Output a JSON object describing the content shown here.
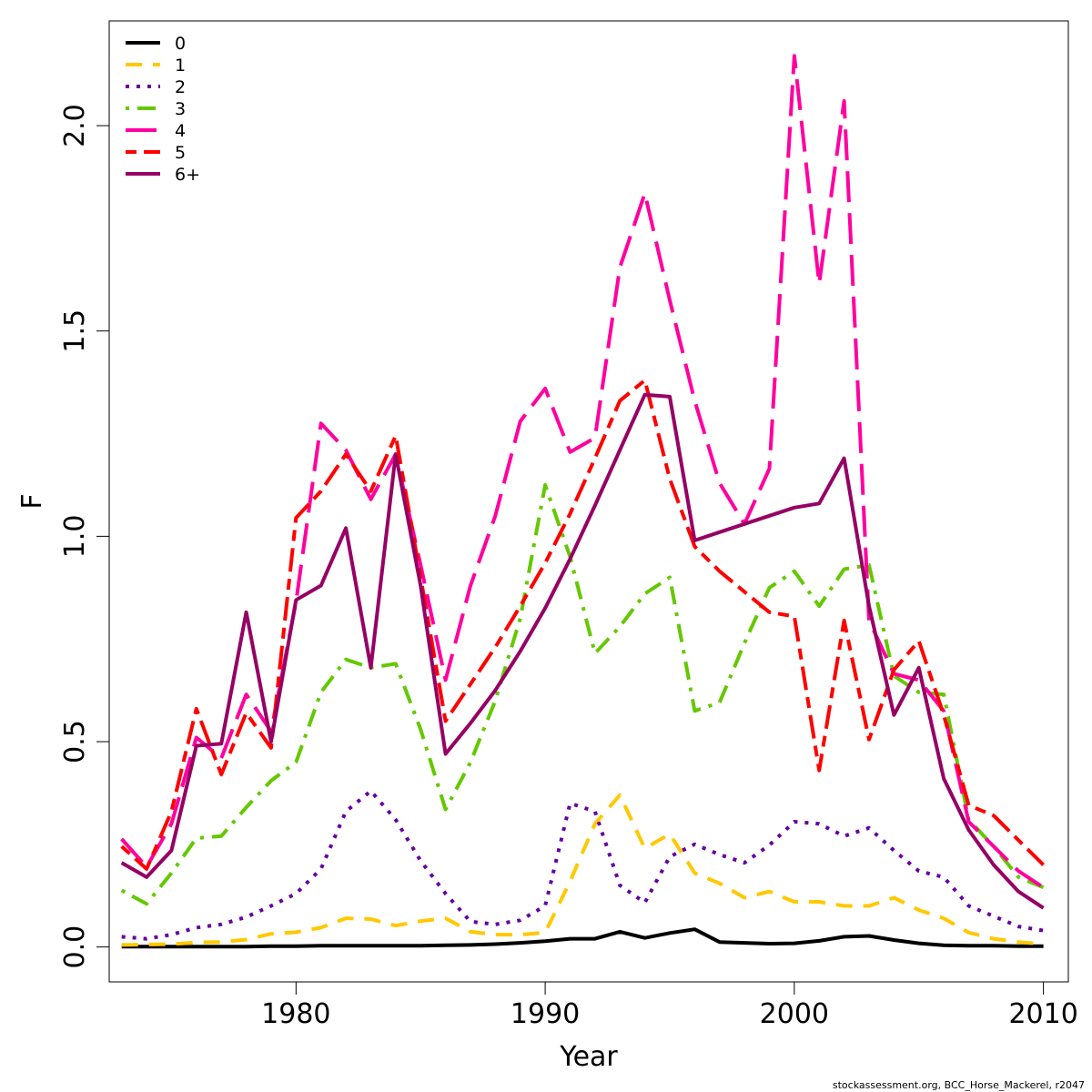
{
  "chart_data": {
    "type": "line",
    "title": "",
    "xlabel": "Year",
    "ylabel": "F",
    "xlim": [
      1972.5,
      2011
    ],
    "ylim": [
      -0.085,
      2.255
    ],
    "x_ticks": [
      1980,
      1990,
      2000,
      2010
    ],
    "x_tick_labels": [
      "1980",
      "1990",
      "2000",
      "2010"
    ],
    "y_ticks": [
      0,
      0.5,
      1,
      1.5,
      2
    ],
    "y_tick_labels": [
      "0.0",
      "0.5",
      "1.0",
      "1.5",
      "2.0"
    ],
    "grid": false,
    "legend_position": "top-left",
    "x": [
      1973,
      1974,
      1975,
      1976,
      1977,
      1978,
      1979,
      1980,
      1981,
      1982,
      1983,
      1984,
      1985,
      1986,
      1987,
      1988,
      1989,
      1990,
      1991,
      1992,
      1993,
      1994,
      1995,
      1996,
      1997,
      1998,
      1999,
      2000,
      2001,
      2002,
      2003,
      2004,
      2005,
      2006,
      2007,
      2008,
      2009,
      2010
    ],
    "series": [
      {
        "name": "0",
        "color": "#000000",
        "dash": "solid",
        "values": [
          0.001,
          0.001,
          0.001,
          0.001,
          0.001,
          0.001,
          0.002,
          0.002,
          0.003,
          0.003,
          0.003,
          0.003,
          0.003,
          0.004,
          0.005,
          0.007,
          0.01,
          0.014,
          0.02,
          0.02,
          0.037,
          0.022,
          0.034,
          0.043,
          0.012,
          0.01,
          0.008,
          0.009,
          0.015,
          0.025,
          0.027,
          0.017,
          0.009,
          0.004,
          0.003,
          0.003,
          0.002,
          0.002
        ]
      },
      {
        "name": "1",
        "color": "#FFC800",
        "dash": "dashed",
        "values": [
          0.005,
          0.006,
          0.007,
          0.011,
          0.012,
          0.018,
          0.032,
          0.036,
          0.047,
          0.07,
          0.068,
          0.052,
          0.063,
          0.07,
          0.037,
          0.03,
          0.03,
          0.035,
          0.16,
          0.3,
          0.37,
          0.24,
          0.275,
          0.18,
          0.155,
          0.12,
          0.135,
          0.11,
          0.11,
          0.1,
          0.1,
          0.12,
          0.09,
          0.07,
          0.035,
          0.02,
          0.012,
          0.007
        ]
      },
      {
        "name": "2",
        "color": "#6400A0",
        "dash": "dotted",
        "values": [
          0.025,
          0.02,
          0.03,
          0.047,
          0.055,
          0.073,
          0.1,
          0.13,
          0.19,
          0.33,
          0.38,
          0.31,
          0.21,
          0.13,
          0.062,
          0.055,
          0.065,
          0.1,
          0.35,
          0.33,
          0.15,
          0.108,
          0.22,
          0.25,
          0.225,
          0.205,
          0.248,
          0.305,
          0.3,
          0.27,
          0.29,
          0.235,
          0.185,
          0.17,
          0.1,
          0.075,
          0.05,
          0.04
        ]
      },
      {
        "name": "3",
        "color": "#64C800",
        "dash": "dotdash",
        "values": [
          0.138,
          0.105,
          0.18,
          0.265,
          0.27,
          0.34,
          0.405,
          0.45,
          0.62,
          0.7,
          0.68,
          0.69,
          0.53,
          0.335,
          0.45,
          0.6,
          0.8,
          1.125,
          0.95,
          0.715,
          0.78,
          0.86,
          0.9,
          0.575,
          0.595,
          0.74,
          0.875,
          0.915,
          0.83,
          0.92,
          0.93,
          0.66,
          0.62,
          0.615,
          0.31,
          0.245,
          0.17,
          0.145
        ]
      },
      {
        "name": "4",
        "color": "#FF00A0",
        "dash": "longdash",
        "values": [
          0.263,
          0.195,
          0.3,
          0.51,
          0.46,
          0.615,
          0.525,
          0.84,
          1.275,
          1.21,
          1.09,
          1.2,
          0.93,
          0.65,
          0.88,
          1.05,
          1.28,
          1.36,
          1.205,
          1.24,
          1.655,
          1.835,
          1.575,
          1.33,
          1.13,
          1.03,
          1.165,
          2.17,
          1.615,
          2.06,
          0.795,
          0.665,
          0.65,
          0.575,
          0.305,
          0.245,
          0.185,
          0.145
        ]
      },
      {
        "name": "5",
        "color": "#FF0000",
        "dash": "twodash",
        "values": [
          0.245,
          0.19,
          0.33,
          0.58,
          0.42,
          0.57,
          0.485,
          1.045,
          1.11,
          1.2,
          1.11,
          1.245,
          0.9,
          0.55,
          0.64,
          0.73,
          0.83,
          0.935,
          1.055,
          1.19,
          1.33,
          1.38,
          1.14,
          0.975,
          0.915,
          0.865,
          0.815,
          0.805,
          0.43,
          0.795,
          0.505,
          0.675,
          0.745,
          0.565,
          0.345,
          0.32,
          0.26,
          0.2
        ]
      },
      {
        "name": "6+",
        "color": "#960064",
        "dash": "solid",
        "values": [
          0.205,
          0.17,
          0.235,
          0.49,
          0.495,
          0.815,
          0.5,
          0.845,
          0.88,
          1.02,
          0.68,
          1.2,
          0.88,
          0.47,
          0.545,
          0.625,
          0.72,
          0.825,
          0.945,
          1.075,
          1.21,
          1.345,
          1.34,
          0.99,
          1.01,
          1.03,
          1.05,
          1.07,
          1.08,
          1.19,
          0.83,
          0.565,
          0.68,
          0.41,
          0.285,
          0.2,
          0.135,
          0.095
        ]
      }
    ]
  },
  "credit": "stockassessment.org, BCC_Horse_Mackerel, r2047"
}
